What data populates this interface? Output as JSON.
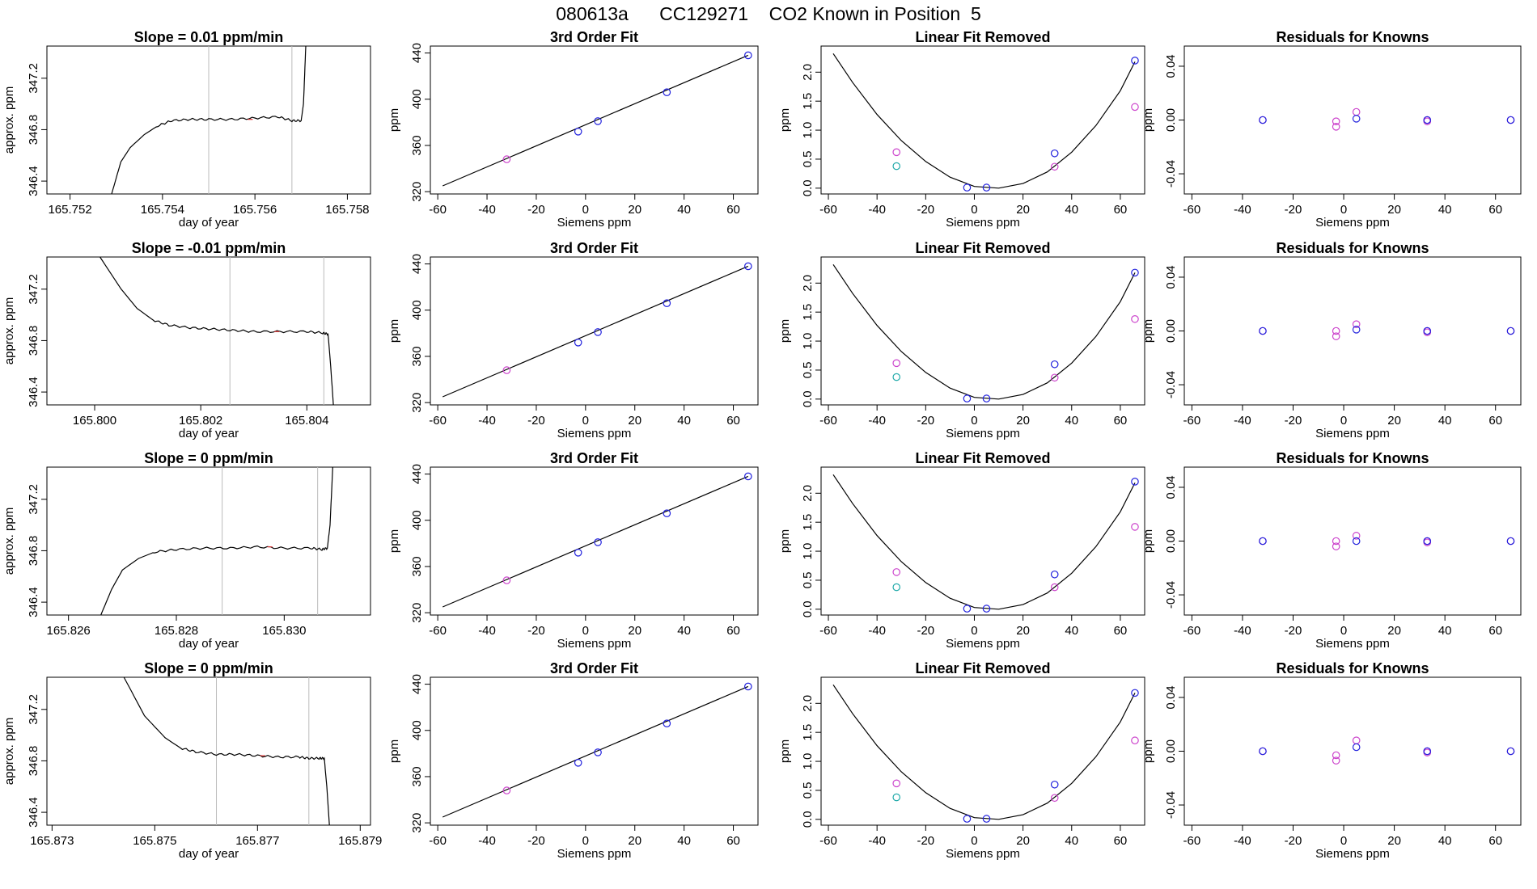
{
  "figure": {
    "title": "080613a      CC129271    CO2 Known in Position  5",
    "colors": {
      "line": "#000000",
      "grid": "#bbbbbb",
      "blue": "#2222dd",
      "magenta": "#cc44cc",
      "cyan": "#22aaaa",
      "red": "#dd3333"
    }
  },
  "chart_data": [
    {
      "type": "line",
      "panel": "trace",
      "row": 0,
      "title": "Slope =  0.01  ppm/min",
      "xlabel": "day of year",
      "ylabel": "approx. ppm",
      "xlim": [
        165.7515,
        165.7585
      ],
      "ylim": [
        346.3,
        347.45
      ],
      "xticks": [
        "165.752",
        "165.754",
        "165.756",
        "165.758"
      ],
      "yticks": [
        "346.4",
        "346.8",
        "347.2"
      ],
      "vlines": [
        165.755,
        165.7568
      ],
      "x": [
        165.7529,
        165.7531,
        165.7533,
        165.7536,
        165.7539,
        165.7542,
        165.7546,
        165.755,
        165.7555,
        165.756,
        165.7565,
        165.7568,
        165.757,
        165.75705,
        165.7571
      ],
      "y": [
        346.3,
        346.55,
        346.66,
        346.76,
        346.83,
        346.87,
        346.88,
        346.88,
        346.88,
        346.89,
        346.9,
        346.87,
        346.87,
        347.0,
        347.45
      ]
    },
    {
      "type": "scatter",
      "panel": "fit",
      "row": 0,
      "title": "3rd Order Fit",
      "xlabel": "Siemens ppm",
      "ylabel": "ppm",
      "xlim": [
        -63,
        70
      ],
      "ylim": [
        318,
        446
      ],
      "xticks": [
        "-60",
        "-40",
        "-20",
        "0",
        "20",
        "40",
        "60"
      ],
      "yticks": [
        "320",
        "360",
        "400",
        "440"
      ],
      "curve": {
        "x": [
          -58,
          66
        ],
        "y": [
          325,
          438
        ]
      },
      "series": [
        {
          "color": "blue",
          "x": [
            -3,
            5,
            33,
            66
          ],
          "y": [
            372,
            381,
            406,
            438
          ]
        },
        {
          "color": "magenta",
          "x": [
            -32
          ],
          "y": [
            348
          ]
        }
      ]
    },
    {
      "type": "scatter",
      "panel": "linear",
      "row": 0,
      "title": "Linear Fit Removed",
      "xlabel": "Siemens ppm",
      "ylabel": "ppm",
      "xlim": [
        -63,
        70
      ],
      "ylim": [
        -0.1,
        2.45
      ],
      "xticks": [
        "-60",
        "-40",
        "-20",
        "0",
        "20",
        "40",
        "60"
      ],
      "yticks": [
        "0.0",
        "0.5",
        "1.0",
        "1.5",
        "2.0"
      ],
      "curve": {
        "x": [
          -58,
          -50,
          -40,
          -30,
          -20,
          -10,
          0,
          10,
          20,
          30,
          40,
          50,
          60,
          66
        ],
        "y": [
          2.32,
          1.82,
          1.27,
          0.82,
          0.46,
          0.19,
          0.03,
          0.0,
          0.08,
          0.28,
          0.62,
          1.08,
          1.68,
          2.18
        ]
      },
      "series": [
        {
          "color": "blue",
          "x": [
            -3,
            5,
            33,
            66
          ],
          "y": [
            0.01,
            0.01,
            0.6,
            2.2
          ]
        },
        {
          "color": "magenta",
          "x": [
            -32,
            33,
            66
          ],
          "y": [
            0.62,
            0.37,
            1.4
          ]
        },
        {
          "color": "cyan",
          "x": [
            -32
          ],
          "y": [
            0.38
          ]
        }
      ]
    },
    {
      "type": "scatter",
      "panel": "resid",
      "row": 0,
      "title": "Residuals for Knowns",
      "xlabel": "Siemens ppm",
      "ylabel": "ppm",
      "xlim": [
        -63,
        70
      ],
      "ylim": [
        -0.055,
        0.055
      ],
      "xticks": [
        "-60",
        "-40",
        "-20",
        "0",
        "20",
        "40",
        "60"
      ],
      "yticks": [
        "-0.04",
        "0.00",
        "0.04"
      ],
      "series": [
        {
          "color": "magenta",
          "x": [
            -32,
            -3,
            -3,
            5,
            33,
            33,
            66
          ],
          "y": [
            0.0,
            -0.001,
            -0.005,
            0.006,
            0.0,
            -0.001,
            0.0
          ]
        },
        {
          "color": "blue",
          "x": [
            -32,
            5,
            33,
            66
          ],
          "y": [
            0.0,
            0.001,
            0.0,
            0.0
          ]
        }
      ]
    },
    {
      "type": "line",
      "panel": "trace",
      "row": 1,
      "title": "Slope =  -0.01  ppm/min",
      "xlabel": "day of year",
      "ylabel": "approx. ppm",
      "xlim": [
        165.7991,
        165.8052
      ],
      "ylim": [
        346.3,
        347.45
      ],
      "xticks": [
        "165.800",
        "165.802",
        "165.804"
      ],
      "yticks": [
        "346.4",
        "346.8",
        "347.2"
      ],
      "vlines": [
        165.80255,
        165.80432
      ],
      "x": [
        165.8001,
        165.8005,
        165.8008,
        165.8011,
        165.8014,
        165.8018,
        165.8022,
        165.8026,
        165.803,
        165.8035,
        165.804,
        165.8043,
        165.8044,
        165.80445,
        165.8045
      ],
      "y": [
        347.45,
        347.2,
        347.05,
        346.96,
        346.92,
        346.9,
        346.89,
        346.88,
        346.87,
        346.87,
        346.87,
        346.86,
        346.85,
        346.6,
        346.3
      ]
    },
    {
      "type": "scatter",
      "panel": "fit",
      "row": 1,
      "title": "3rd Order Fit",
      "xlabel": "Siemens ppm",
      "ylabel": "ppm",
      "xlim": [
        -63,
        70
      ],
      "ylim": [
        318,
        446
      ],
      "xticks": [
        "-60",
        "-40",
        "-20",
        "0",
        "20",
        "40",
        "60"
      ],
      "yticks": [
        "320",
        "360",
        "400",
        "440"
      ],
      "curve": {
        "x": [
          -58,
          66
        ],
        "y": [
          325,
          438
        ]
      },
      "series": [
        {
          "color": "blue",
          "x": [
            -3,
            5,
            33,
            66
          ],
          "y": [
            372,
            381,
            406,
            438
          ]
        },
        {
          "color": "magenta",
          "x": [
            -32
          ],
          "y": [
            348
          ]
        }
      ]
    },
    {
      "type": "scatter",
      "panel": "linear",
      "row": 1,
      "title": "Linear Fit Removed",
      "xlabel": "Siemens ppm",
      "ylabel": "ppm",
      "xlim": [
        -63,
        70
      ],
      "ylim": [
        -0.1,
        2.45
      ],
      "xticks": [
        "-60",
        "-40",
        "-20",
        "0",
        "20",
        "40",
        "60"
      ],
      "yticks": [
        "0.0",
        "0.5",
        "1.0",
        "1.5",
        "2.0"
      ],
      "curve": {
        "x": [
          -58,
          -50,
          -40,
          -30,
          -20,
          -10,
          0,
          10,
          20,
          30,
          40,
          50,
          60,
          66
        ],
        "y": [
          2.32,
          1.82,
          1.27,
          0.82,
          0.46,
          0.19,
          0.03,
          0.0,
          0.08,
          0.28,
          0.62,
          1.08,
          1.68,
          2.18
        ]
      },
      "series": [
        {
          "color": "blue",
          "x": [
            -3,
            5,
            33,
            66
          ],
          "y": [
            0.01,
            0.01,
            0.6,
            2.18
          ]
        },
        {
          "color": "magenta",
          "x": [
            -32,
            33,
            66
          ],
          "y": [
            0.62,
            0.37,
            1.38
          ]
        },
        {
          "color": "cyan",
          "x": [
            -32
          ],
          "y": [
            0.38
          ]
        }
      ]
    },
    {
      "type": "scatter",
      "panel": "resid",
      "row": 1,
      "title": "Residuals for Knowns",
      "xlabel": "Siemens ppm",
      "ylabel": "ppm",
      "xlim": [
        -63,
        70
      ],
      "ylim": [
        -0.055,
        0.055
      ],
      "xticks": [
        "-60",
        "-40",
        "-20",
        "0",
        "20",
        "40",
        "60"
      ],
      "yticks": [
        "-0.04",
        "0.00",
        "0.04"
      ],
      "series": [
        {
          "color": "magenta",
          "x": [
            -32,
            -3,
            -3,
            5,
            33,
            33,
            66
          ],
          "y": [
            0.0,
            0.0,
            -0.004,
            0.005,
            0.0,
            -0.001,
            0.0
          ]
        },
        {
          "color": "blue",
          "x": [
            -32,
            5,
            33,
            66
          ],
          "y": [
            0.0,
            0.001,
            0.0,
            0.0
          ]
        }
      ]
    },
    {
      "type": "line",
      "panel": "trace",
      "row": 2,
      "title": "Slope =  0  ppm/min",
      "xlabel": "day of year",
      "ylabel": "approx. ppm",
      "xlim": [
        165.8256,
        165.8316
      ],
      "ylim": [
        346.3,
        347.45
      ],
      "xticks": [
        "165.826",
        "165.828",
        "165.830"
      ],
      "yticks": [
        "346.4",
        "346.8",
        "347.2"
      ],
      "vlines": [
        165.82885,
        165.83062
      ],
      "x": [
        165.8266,
        165.8268,
        165.827,
        165.8273,
        165.8276,
        165.828,
        165.8285,
        165.829,
        165.8295,
        165.83,
        165.8305,
        165.8307,
        165.8308,
        165.83085,
        165.8309
      ],
      "y": [
        346.3,
        346.5,
        346.65,
        346.74,
        346.79,
        346.81,
        346.82,
        346.82,
        346.83,
        346.82,
        346.82,
        346.81,
        346.82,
        347.0,
        347.45
      ]
    },
    {
      "type": "scatter",
      "panel": "fit",
      "row": 2,
      "title": "3rd Order Fit",
      "xlabel": "Siemens ppm",
      "ylabel": "ppm",
      "xlim": [
        -63,
        70
      ],
      "ylim": [
        318,
        446
      ],
      "xticks": [
        "-60",
        "-40",
        "-20",
        "0",
        "20",
        "40",
        "60"
      ],
      "yticks": [
        "320",
        "360",
        "400",
        "440"
      ],
      "curve": {
        "x": [
          -58,
          66
        ],
        "y": [
          325,
          438
        ]
      },
      "series": [
        {
          "color": "blue",
          "x": [
            -3,
            5,
            33,
            66
          ],
          "y": [
            372,
            381,
            406,
            438
          ]
        },
        {
          "color": "magenta",
          "x": [
            -32
          ],
          "y": [
            348
          ]
        }
      ]
    },
    {
      "type": "scatter",
      "panel": "linear",
      "row": 2,
      "title": "Linear Fit Removed",
      "xlabel": "Siemens ppm",
      "ylabel": "ppm",
      "xlim": [
        -63,
        70
      ],
      "ylim": [
        -0.1,
        2.45
      ],
      "xticks": [
        "-60",
        "-40",
        "-20",
        "0",
        "20",
        "40",
        "60"
      ],
      "yticks": [
        "0.0",
        "0.5",
        "1.0",
        "1.5",
        "2.0"
      ],
      "curve": {
        "x": [
          -58,
          -50,
          -40,
          -30,
          -20,
          -10,
          0,
          10,
          20,
          30,
          40,
          50,
          60,
          66
        ],
        "y": [
          2.32,
          1.82,
          1.27,
          0.82,
          0.46,
          0.19,
          0.03,
          0.0,
          0.08,
          0.28,
          0.62,
          1.08,
          1.68,
          2.18
        ]
      },
      "series": [
        {
          "color": "blue",
          "x": [
            -3,
            5,
            33,
            66
          ],
          "y": [
            0.01,
            0.01,
            0.6,
            2.2
          ]
        },
        {
          "color": "magenta",
          "x": [
            -32,
            33,
            66
          ],
          "y": [
            0.64,
            0.38,
            1.42
          ]
        },
        {
          "color": "cyan",
          "x": [
            -32
          ],
          "y": [
            0.38
          ]
        }
      ]
    },
    {
      "type": "scatter",
      "panel": "resid",
      "row": 2,
      "title": "Residuals for Knowns",
      "xlabel": "Siemens ppm",
      "ylabel": "ppm",
      "xlim": [
        -63,
        70
      ],
      "ylim": [
        -0.055,
        0.055
      ],
      "xticks": [
        "-60",
        "-40",
        "-20",
        "0",
        "20",
        "40",
        "60"
      ],
      "yticks": [
        "-0.04",
        "0.00",
        "0.04"
      ],
      "series": [
        {
          "color": "magenta",
          "x": [
            -32,
            -3,
            -3,
            5,
            33,
            33,
            66
          ],
          "y": [
            0.0,
            0.0,
            -0.004,
            0.004,
            0.0,
            -0.001,
            0.0
          ]
        },
        {
          "color": "blue",
          "x": [
            -32,
            5,
            33,
            66
          ],
          "y": [
            0.0,
            0.0,
            0.0,
            0.0
          ]
        }
      ]
    },
    {
      "type": "line",
      "panel": "trace",
      "row": 3,
      "title": "Slope =  0  ppm/min",
      "xlabel": "day of year",
      "ylabel": "approx. ppm",
      "xlim": [
        165.8729,
        165.8792
      ],
      "ylim": [
        346.3,
        347.45
      ],
      "xticks": [
        "165.873",
        "165.875",
        "165.877",
        "165.879"
      ],
      "yticks": [
        "346.4",
        "346.8",
        "347.2"
      ],
      "vlines": [
        165.8762,
        165.878
      ],
      "x": [
        165.8744,
        165.8748,
        165.8752,
        165.8755,
        165.8758,
        165.8762,
        165.8766,
        165.877,
        165.8774,
        165.8778,
        165.878,
        165.8782,
        165.8783,
        165.87835,
        165.8784
      ],
      "y": [
        347.45,
        347.15,
        346.98,
        346.9,
        346.87,
        346.85,
        346.85,
        346.84,
        346.83,
        346.83,
        346.82,
        346.82,
        346.82,
        346.6,
        346.3
      ]
    },
    {
      "type": "scatter",
      "panel": "fit",
      "row": 3,
      "title": "3rd Order Fit",
      "xlabel": "Siemens ppm",
      "ylabel": "ppm",
      "xlim": [
        -63,
        70
      ],
      "ylim": [
        318,
        446
      ],
      "xticks": [
        "-60",
        "-40",
        "-20",
        "0",
        "20",
        "40",
        "60"
      ],
      "yticks": [
        "320",
        "360",
        "400",
        "440"
      ],
      "curve": {
        "x": [
          -58,
          66
        ],
        "y": [
          325,
          438
        ]
      },
      "series": [
        {
          "color": "blue",
          "x": [
            -3,
            5,
            33,
            66
          ],
          "y": [
            372,
            381,
            406,
            438
          ]
        },
        {
          "color": "magenta",
          "x": [
            -32
          ],
          "y": [
            348
          ]
        }
      ]
    },
    {
      "type": "scatter",
      "panel": "linear",
      "row": 3,
      "title": "Linear Fit Removed",
      "xlabel": "Siemens ppm",
      "ylabel": "ppm",
      "xlim": [
        -63,
        70
      ],
      "ylim": [
        -0.1,
        2.45
      ],
      "xticks": [
        "-60",
        "-40",
        "-20",
        "0",
        "20",
        "40",
        "60"
      ],
      "yticks": [
        "0.0",
        "0.5",
        "1.0",
        "1.5",
        "2.0"
      ],
      "curve": {
        "x": [
          -58,
          -50,
          -40,
          -30,
          -20,
          -10,
          0,
          10,
          20,
          30,
          40,
          50,
          60,
          66
        ],
        "y": [
          2.32,
          1.82,
          1.27,
          0.82,
          0.46,
          0.19,
          0.03,
          0.0,
          0.08,
          0.28,
          0.62,
          1.08,
          1.68,
          2.18
        ]
      },
      "series": [
        {
          "color": "blue",
          "x": [
            -3,
            5,
            33,
            66
          ],
          "y": [
            0.01,
            0.01,
            0.6,
            2.18
          ]
        },
        {
          "color": "magenta",
          "x": [
            -32,
            33,
            66
          ],
          "y": [
            0.62,
            0.37,
            1.36
          ]
        },
        {
          "color": "cyan",
          "x": [
            -32
          ],
          "y": [
            0.38
          ]
        }
      ]
    },
    {
      "type": "scatter",
      "panel": "resid",
      "row": 3,
      "title": "Residuals for Knowns",
      "xlabel": "Siemens ppm",
      "ylabel": "ppm",
      "xlim": [
        -63,
        70
      ],
      "ylim": [
        -0.055,
        0.055
      ],
      "xticks": [
        "-60",
        "-40",
        "-20",
        "0",
        "20",
        "40",
        "60"
      ],
      "yticks": [
        "-0.04",
        "0.00",
        "0.04"
      ],
      "series": [
        {
          "color": "magenta",
          "x": [
            -32,
            -3,
            -3,
            5,
            33,
            33,
            66
          ],
          "y": [
            0.0,
            -0.003,
            -0.007,
            0.008,
            0.0,
            -0.001,
            0.0
          ]
        },
        {
          "color": "blue",
          "x": [
            -32,
            5,
            33,
            66
          ],
          "y": [
            0.0,
            0.003,
            0.0,
            0.0
          ]
        }
      ]
    }
  ]
}
